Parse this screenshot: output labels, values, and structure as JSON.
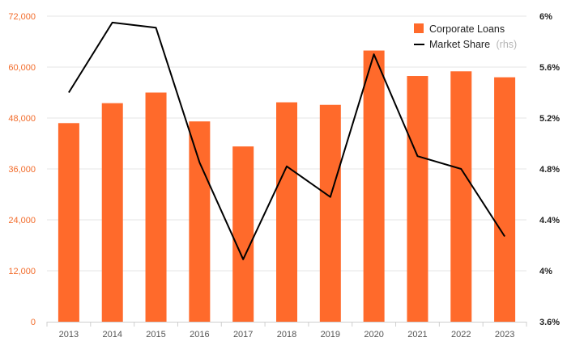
{
  "chart_data": {
    "type": "bar",
    "title": "",
    "xlabel": "",
    "ylabel": "",
    "categories": [
      "2013",
      "2014",
      "2015",
      "2016",
      "2017",
      "2018",
      "2019",
      "2020",
      "2021",
      "2022",
      "2023"
    ],
    "series": [
      {
        "name": "Corporate Loans",
        "type": "bar",
        "axis": "left",
        "color": "#ff6a2b",
        "values": [
          46800,
          51500,
          54000,
          47200,
          41300,
          51700,
          51100,
          63900,
          57900,
          59000,
          57600
        ]
      },
      {
        "name": "Market Share",
        "name_suffix": "(rhs)",
        "type": "line",
        "axis": "right",
        "color": "#000000",
        "values": [
          5.4,
          5.95,
          5.91,
          4.85,
          4.09,
          4.82,
          4.58,
          5.7,
          4.9,
          4.8,
          4.27
        ]
      }
    ],
    "y_left": {
      "ylim": [
        0,
        72000
      ],
      "ticks": [
        0,
        12000,
        24000,
        36000,
        48000,
        60000,
        72000
      ],
      "tick_labels": [
        "0",
        "12,000",
        "24,000",
        "36,000",
        "48,000",
        "60,000",
        "72,000"
      ],
      "color": "#f26b2a"
    },
    "y_right": {
      "ylim": [
        3.6,
        6.0
      ],
      "ticks": [
        3.6,
        4.0,
        4.4,
        4.8,
        5.2,
        5.6,
        6.0
      ],
      "tick_labels": [
        "3.6%",
        "4%",
        "4.4%",
        "4.8%",
        "5.2%",
        "5.6%",
        "6%"
      ],
      "color": "#222222"
    },
    "grid": true,
    "legend": "top-right"
  }
}
